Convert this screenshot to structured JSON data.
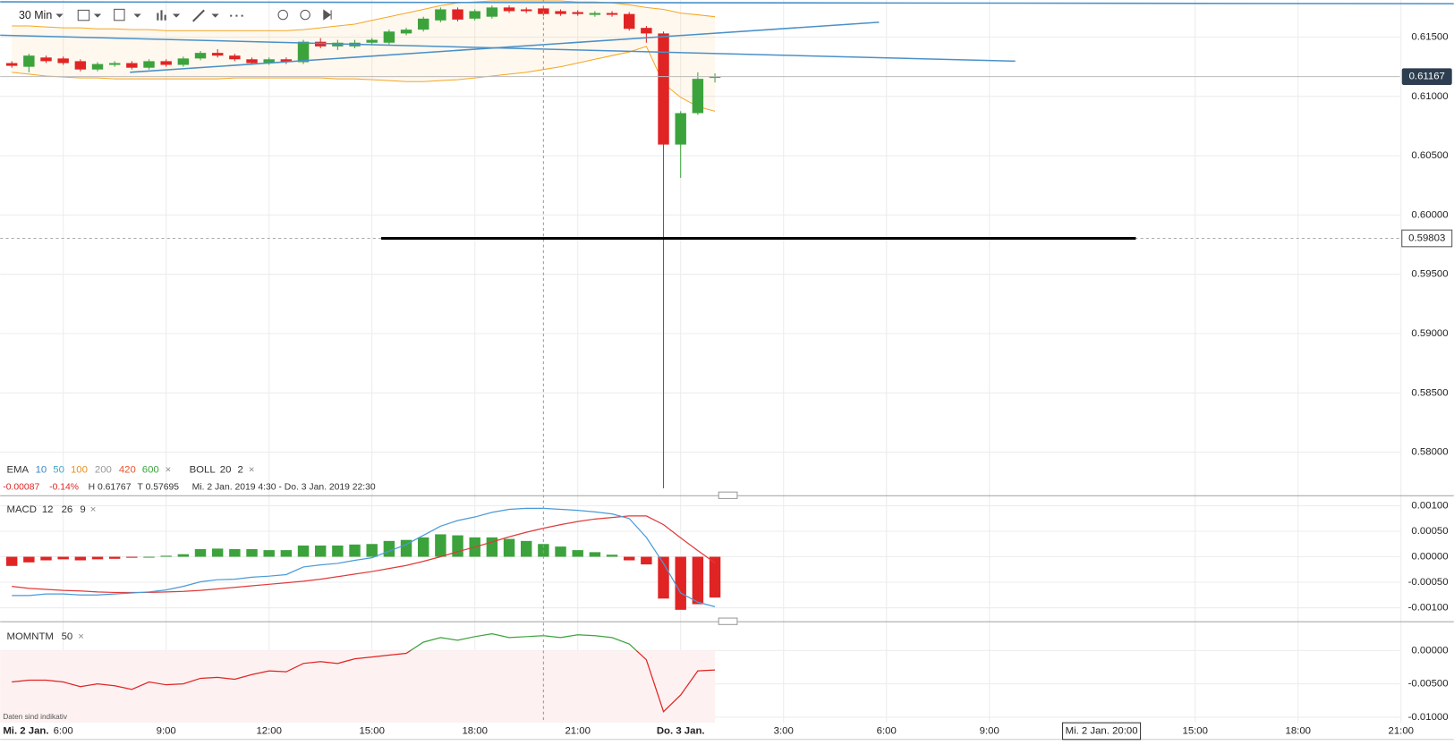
{
  "toolbar": {
    "interval": "30 Min"
  },
  "legend": {
    "ema_label": "EMA",
    "ema_periods": [
      {
        "text": "10",
        "color": "#3d85c6"
      },
      {
        "text": "50",
        "color": "#45a5c8"
      },
      {
        "text": "100",
        "color": "#e8901e"
      },
      {
        "text": "200",
        "color": "#999999"
      },
      {
        "text": "420",
        "color": "#e8552b"
      },
      {
        "text": "600",
        "color": "#3ca33c"
      }
    ],
    "ema_close": "×",
    "boll_label": "BOLL",
    "boll_period": "20",
    "boll_dev": "2",
    "boll_close": "×"
  },
  "stats": {
    "change": "-0.00087",
    "change_pct": "-0.14%",
    "high": "H 0.61767",
    "low": "T 0.57695",
    "range": "Mi. 2 Jan. 2019 4:30 - Do. 3 Jan. 2019 22:30"
  },
  "start_date_label": "Mi. 2 Jan.",
  "crosshair_label": "Mi. 2 Jan. 20:00",
  "footnote": "Daten sind indikativ",
  "chart_data": [
    {
      "type": "candlestick",
      "x": [
        4.5,
        5,
        5.5,
        6,
        6.5,
        7,
        7.5,
        8,
        8.5,
        9,
        9.5,
        10,
        10.5,
        11,
        11.5,
        12,
        12.5,
        13,
        13.5,
        14,
        14.5,
        15,
        15.5,
        16,
        16.5,
        17,
        17.5,
        18,
        18.5,
        19,
        19.5,
        20,
        20.5,
        21,
        21.5,
        22,
        22.5,
        23,
        23.5,
        24,
        24.5,
        25
      ],
      "open": [
        0.61281,
        0.6125,
        0.61328,
        0.6132,
        0.61297,
        0.61227,
        0.61266,
        0.61281,
        0.61242,
        0.61297,
        0.61266,
        0.6132,
        0.61367,
        0.61344,
        0.61313,
        0.61281,
        0.61313,
        0.61289,
        0.61461,
        0.61422,
        0.61422,
        0.61453,
        0.61453,
        0.61531,
        0.61563,
        0.61641,
        0.61734,
        0.61656,
        0.61672,
        0.6175,
        0.61734,
        0.61742,
        0.61719,
        0.61711,
        0.61688,
        0.61703,
        0.61695,
        0.61578,
        0.61531,
        0.60594,
        0.60859,
        0.61156
      ],
      "high": [
        0.61297,
        0.6136,
        0.61344,
        0.61336,
        0.61313,
        0.61289,
        0.61297,
        0.61297,
        0.61313,
        0.61313,
        0.61336,
        0.61383,
        0.61398,
        0.6136,
        0.61328,
        0.61328,
        0.61328,
        0.61477,
        0.61492,
        0.61477,
        0.61477,
        0.61492,
        0.61563,
        0.61578,
        0.61672,
        0.6175,
        0.6175,
        0.61734,
        0.61767,
        0.61767,
        0.6175,
        0.61758,
        0.61734,
        0.61727,
        0.61719,
        0.61719,
        0.61711,
        0.61594,
        0.61547,
        0.60875,
        0.61203,
        0.61195
      ],
      "low": [
        0.61242,
        0.61203,
        0.61281,
        0.61266,
        0.61211,
        0.61211,
        0.6125,
        0.61227,
        0.61227,
        0.6125,
        0.6125,
        0.61305,
        0.61328,
        0.61297,
        0.61266,
        0.61266,
        0.61273,
        0.61273,
        0.61406,
        0.61391,
        0.61406,
        0.61438,
        0.61438,
        0.61516,
        0.61547,
        0.61625,
        0.61633,
        0.61641,
        0.61656,
        0.61703,
        0.61703,
        0.6168,
        0.6168,
        0.6168,
        0.61672,
        0.61672,
        0.61555,
        0.61453,
        0.57695,
        0.60313,
        0.60844,
        0.61117
      ],
      "close": [
        0.61258,
        0.61344,
        0.61297,
        0.61281,
        0.61227,
        0.61273,
        0.61281,
        0.61242,
        0.61297,
        0.61266,
        0.6132,
        0.61367,
        0.61344,
        0.61313,
        0.61281,
        0.61313,
        0.61289,
        0.61461,
        0.61422,
        0.61453,
        0.61453,
        0.61477,
        0.61547,
        0.61563,
        0.61656,
        0.61734,
        0.61648,
        0.61719,
        0.6175,
        0.61719,
        0.61719,
        0.61695,
        0.61695,
        0.61695,
        0.61703,
        0.61688,
        0.6157,
        0.61531,
        0.60594,
        0.60859,
        0.61148,
        0.61167
      ],
      "up_color": "#3ca33c",
      "down_color": "#e02424",
      "bollinger_upper": [
        0.61594,
        0.61594,
        0.61586,
        0.61578,
        0.61578,
        0.6157,
        0.6157,
        0.61563,
        0.61563,
        0.61555,
        0.61555,
        0.61555,
        0.61555,
        0.61555,
        0.61555,
        0.61555,
        0.61555,
        0.61563,
        0.61578,
        0.61594,
        0.61609,
        0.61641,
        0.61672,
        0.61703,
        0.61734,
        0.61766,
        0.61789,
        0.61797,
        0.61805,
        0.61805,
        0.61805,
        0.61805,
        0.61805,
        0.61797,
        0.61797,
        0.61789,
        0.61773,
        0.6175,
        0.61734,
        0.61703,
        0.61688,
        0.61672
      ],
      "bollinger_lower": [
        0.61203,
        0.61188,
        0.61172,
        0.61164,
        0.61156,
        0.61156,
        0.61148,
        0.61148,
        0.61148,
        0.61148,
        0.61148,
        0.61148,
        0.61148,
        0.61156,
        0.61156,
        0.61156,
        0.61156,
        0.61156,
        0.61156,
        0.61148,
        0.61148,
        0.61141,
        0.61133,
        0.61125,
        0.61125,
        0.61133,
        0.61141,
        0.61156,
        0.61172,
        0.61188,
        0.61203,
        0.61227,
        0.6125,
        0.61281,
        0.61313,
        0.61344,
        0.61375,
        0.61422,
        0.61109,
        0.60992,
        0.60914,
        0.60875
      ],
      "bollinger_color": "#f5a623",
      "xlim": [
        4.162,
        46.54
      ],
      "ylim": [
        0.57648,
        0.61813
      ],
      "yticks": [
        {
          "value": 0.615,
          "label": "0.61500"
        },
        {
          "value": 0.61,
          "label": "0.61000"
        },
        {
          "value": 0.605,
          "label": "0.60500"
        },
        {
          "value": 0.6,
          "label": "0.60000"
        },
        {
          "value": 0.595,
          "label": "0.59500"
        },
        {
          "value": 0.59,
          "label": "0.59000"
        },
        {
          "value": 0.585,
          "label": "0.58500"
        },
        {
          "value": 0.58,
          "label": "0.58000"
        }
      ],
      "last_price": 0.61167,
      "hline": 0.59803,
      "grid": true
    },
    {
      "type": "macd",
      "title": "MACD",
      "params": [
        "12",
        "26",
        "9"
      ],
      "close": "×",
      "x": [
        4.5,
        5,
        5.5,
        6,
        6.5,
        7,
        7.5,
        8,
        8.5,
        9,
        9.5,
        10,
        10.5,
        11,
        11.5,
        12,
        12.5,
        13,
        13.5,
        14,
        14.5,
        15,
        15.5,
        16,
        16.5,
        17,
        17.5,
        18,
        18.5,
        19,
        19.5,
        20,
        20.5,
        21,
        21.5,
        22,
        22.5,
        23,
        23.5,
        24,
        24.5,
        25
      ],
      "histogram": [
        -0.00018,
        -0.00011,
        -7e-05,
        -5e-05,
        -7e-05,
        -5e-05,
        -4e-05,
        -2e-05,
        0,
        2e-05,
        5e-05,
        0.00015,
        0.00016,
        0.00015,
        0.00015,
        0.00013,
        0.00013,
        0.00022,
        0.00022,
        0.00022,
        0.00024,
        0.00025,
        0.00031,
        0.00033,
        0.00038,
        0.00044,
        0.00042,
        0.00038,
        0.00038,
        0.00035,
        0.00031,
        0.00025,
        0.0002,
        0.00013,
        9e-05,
        4e-05,
        -7e-05,
        -0.00015,
        -0.00082,
        -0.00104,
        -0.00093,
        -0.0008
      ],
      "macd": [
        -0.00076,
        -0.00076,
        -0.00073,
        -0.00073,
        -0.00075,
        -0.00075,
        -0.00073,
        -0.00071,
        -0.00069,
        -0.00065,
        -0.00058,
        -0.00049,
        -0.00045,
        -0.00044,
        -0.0004,
        -0.00038,
        -0.00035,
        -0.0002,
        -0.00016,
        -0.00013,
        -7e-05,
        -2e-05,
        0.00011,
        0.00024,
        0.00042,
        0.0006,
        0.00071,
        0.00078,
        0.00087,
        0.00093,
        0.00095,
        0.00095,
        0.00093,
        0.00091,
        0.00088,
        0.00084,
        0.00075,
        0.00038,
        -0.00013,
        -0.00071,
        -0.00089,
        -0.00098
      ],
      "signal": [
        -0.00058,
        -0.00062,
        -0.00064,
        -0.00066,
        -0.00067,
        -0.00069,
        -0.0007,
        -0.0007,
        -0.0007,
        -0.00069,
        -0.00068,
        -0.00066,
        -0.00063,
        -0.0006,
        -0.00057,
        -0.00054,
        -0.00051,
        -0.00048,
        -0.00044,
        -0.00039,
        -0.00034,
        -0.00029,
        -0.00023,
        -0.00017,
        -9e-05,
        0,
        0.0001,
        0.00019,
        0.00029,
        0.00039,
        0.00048,
        0.00056,
        0.00063,
        0.00069,
        0.00074,
        0.00077,
        0.0008,
        0.0008,
        0.00063,
        0.00037,
        0.00012,
        -0.00012
      ],
      "up_color": "#3ca33c",
      "down_color": "#e02424",
      "macd_color": "#4a9ad8",
      "signal_color": "#e03a3a",
      "xlim": [
        4.162,
        46.54
      ],
      "ylim": [
        -0.00122,
        0.00116
      ],
      "yticks": [
        {
          "value": 0.001,
          "label": "0.00100"
        },
        {
          "value": 0.0005,
          "label": "0.00050"
        },
        {
          "value": 0,
          "label": "0.00000"
        },
        {
          "value": -0.0005,
          "label": "-0.00050"
        },
        {
          "value": -0.001,
          "label": "-0.00100"
        }
      ],
      "grid": true
    },
    {
      "type": "momentum",
      "title": "MOMNTM",
      "params": [
        "50"
      ],
      "close": "×",
      "x": [
        4.5,
        5,
        5.5,
        6,
        6.5,
        7,
        7.5,
        8,
        8.5,
        9,
        9.5,
        10,
        10.5,
        11,
        11.5,
        12,
        12.5,
        13,
        13.5,
        14,
        14.5,
        15,
        15.5,
        16,
        16.5,
        17,
        17.5,
        18,
        18.5,
        19,
        19.5,
        20,
        20.5,
        21,
        21.5,
        22,
        22.5,
        23,
        23.5,
        24,
        24.5,
        25
      ],
      "values": [
        -0.00472,
        -0.00444,
        -0.00444,
        -0.00472,
        -0.00542,
        -0.005,
        -0.00528,
        -0.00583,
        -0.00472,
        -0.00514,
        -0.005,
        -0.00417,
        -0.00403,
        -0.00431,
        -0.00361,
        -0.00306,
        -0.00319,
        -0.00194,
        -0.00167,
        -0.00194,
        -0.00125,
        -0.00097,
        -0.00069,
        -0.00042,
        0.00125,
        0.00194,
        0.00153,
        0.00208,
        0.0025,
        0.00194,
        0.00208,
        0.00222,
        0.00194,
        0.00236,
        0.00222,
        0.00194,
        0.00097,
        -0.00139,
        -0.00917,
        -0.00667,
        -0.00306,
        -0.00292
      ],
      "up_color": "#3ca33c",
      "down_color": "#e02424",
      "xlim": [
        4.162,
        46.54
      ],
      "ylim": [
        -0.01083,
        0.00389
      ],
      "yticks": [
        {
          "value": 0,
          "label": "0.00000"
        },
        {
          "value": -0.005,
          "label": "-0.00500"
        },
        {
          "value": -0.01,
          "label": "-0.01000"
        }
      ],
      "xticks": [
        {
          "value": 6,
          "label": "6:00"
        },
        {
          "value": 9,
          "label": "9:00"
        },
        {
          "value": 12,
          "label": "12:00"
        },
        {
          "value": 15,
          "label": "15:00"
        },
        {
          "value": 18,
          "label": "18:00"
        },
        {
          "value": 21,
          "label": "21:00"
        },
        {
          "value": 24,
          "label": "Do. 3 Jan."
        },
        {
          "value": 27,
          "label": "3:00"
        },
        {
          "value": 30,
          "label": "6:00"
        },
        {
          "value": 33,
          "label": "9:00"
        },
        {
          "value": 39,
          "label": "15:00"
        },
        {
          "value": 42,
          "label": "18:00"
        },
        {
          "value": 45,
          "label": "21:00"
        }
      ],
      "grid": true
    }
  ]
}
